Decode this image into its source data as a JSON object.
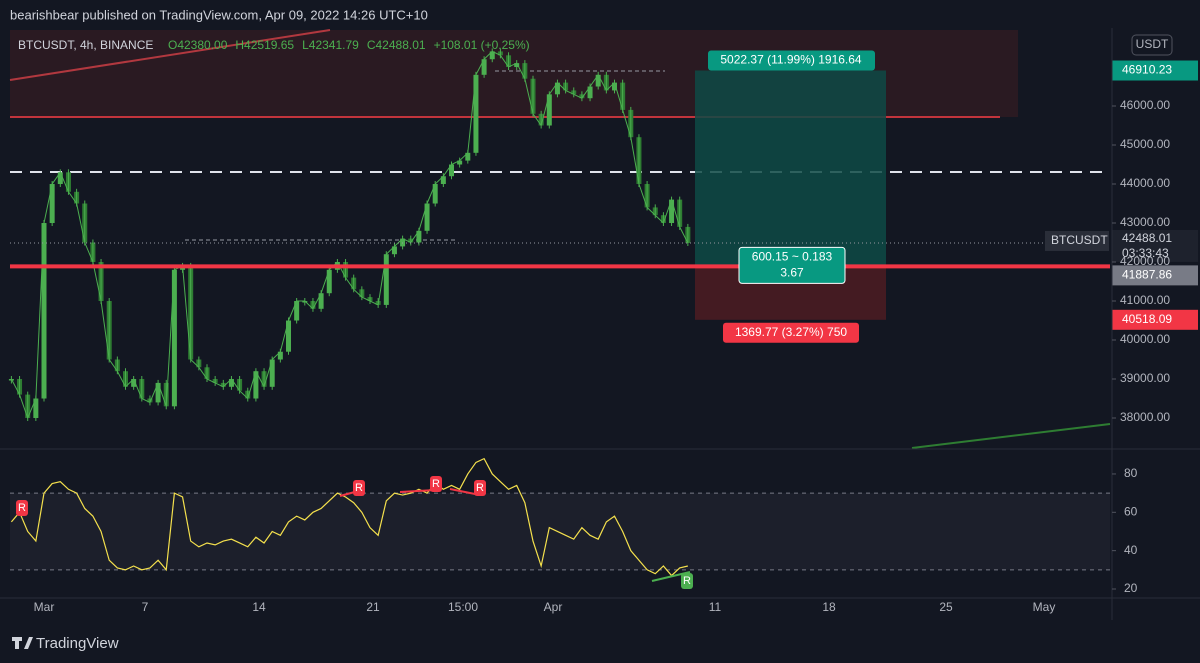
{
  "header": {
    "publisher": "bearishbear published on TradingView.com, Apr 09, 2022 14:26 UTC+10",
    "symbol": "BTCUSDT, 4h, BINANCE",
    "ohlc": [
      "O42380.00",
      "H42519.65",
      "L42341.79",
      "C42488.01",
      "+108.01 (+0.25%)"
    ]
  },
  "price_chart": {
    "type": "candlestick",
    "values": [
      39000,
      38600,
      38000,
      38500,
      43000,
      44000,
      44300,
      43800,
      43500,
      42500,
      42000,
      41000,
      39500,
      39200,
      38800,
      39000,
      38500,
      38400,
      38900,
      38300,
      41800,
      41900,
      39500,
      39300,
      39000,
      38900,
      38800,
      39000,
      38700,
      38500,
      39200,
      38800,
      39500,
      39700,
      40500,
      41000,
      41000,
      40800,
      41200,
      41800,
      42000,
      41600,
      41300,
      41100,
      41000,
      40900,
      42200,
      42400,
      42600,
      42500,
      42800,
      43500,
      44000,
      44200,
      44500,
      44600,
      44800,
      46800,
      47200,
      47400,
      47300,
      47000,
      47100,
      46700,
      45800,
      45500,
      46300,
      46600,
      46400,
      46300,
      46200,
      46500,
      46800,
      46400,
      46600,
      45900,
      45200,
      44000,
      43400,
      43200,
      43000,
      43600,
      42900,
      42488
    ],
    "ylim": [
      37231,
      47949
    ],
    "yticks": [
      {
        "value": 38000,
        "label": "38000.00"
      },
      {
        "value": 39000,
        "label": "39000.00"
      },
      {
        "value": 40000,
        "label": "40000.00"
      },
      {
        "value": 41000,
        "label": "41000.00"
      },
      {
        "value": 42000,
        "label": "42000.00"
      },
      {
        "value": 43000,
        "label": "43000.00"
      },
      {
        "value": 44000,
        "label": "44000.00"
      },
      {
        "value": 45000,
        "label": "45000.00"
      },
      {
        "value": 46000,
        "label": "46000.00"
      }
    ],
    "currency": "USDT",
    "symbol_label": "BTCUSDT",
    "countdown": "03:33:43",
    "last": 42488.01,
    "entry": 41887.86,
    "target": 46910.23,
    "stop": 40518.09
  },
  "position": {
    "profit_label": "5022.37 (11.99%) 1916.64",
    "center_label": [
      "600.15 ~ 0.183",
      "3.67"
    ],
    "loss_label": "1369.77 (3.27%) 750"
  },
  "rsi": {
    "type": "line",
    "values": [
      55,
      60,
      50,
      45,
      70,
      75,
      76,
      72,
      70,
      62,
      58,
      50,
      35,
      31,
      30,
      32,
      30,
      31,
      35,
      30,
      70,
      68,
      45,
      42,
      44,
      43,
      45,
      46,
      44,
      42,
      47,
      44,
      50,
      48,
      55,
      58,
      56,
      60,
      62,
      66,
      70,
      68,
      65,
      60,
      52,
      48,
      66,
      70,
      69,
      70,
      72,
      70,
      75,
      72,
      74,
      72,
      80,
      86,
      88,
      80,
      76,
      72,
      74,
      65,
      45,
      32,
      52,
      50,
      48,
      46,
      52,
      48,
      46,
      55,
      58,
      50,
      40,
      35,
      30,
      28,
      32,
      27,
      31,
      32
    ],
    "ylim": [
      15.3,
      92.5
    ],
    "yticks": [
      20,
      40,
      60,
      80
    ],
    "bands": [
      30,
      70
    ],
    "markers": [
      "R",
      "R",
      "R",
      "R",
      "R"
    ]
  },
  "x_axis": {
    "labels": [
      "Mar",
      "7",
      "14",
      "21",
      "15:00",
      "Apr",
      "11",
      "18",
      "25",
      "May"
    ]
  },
  "brand": "TradingView"
}
